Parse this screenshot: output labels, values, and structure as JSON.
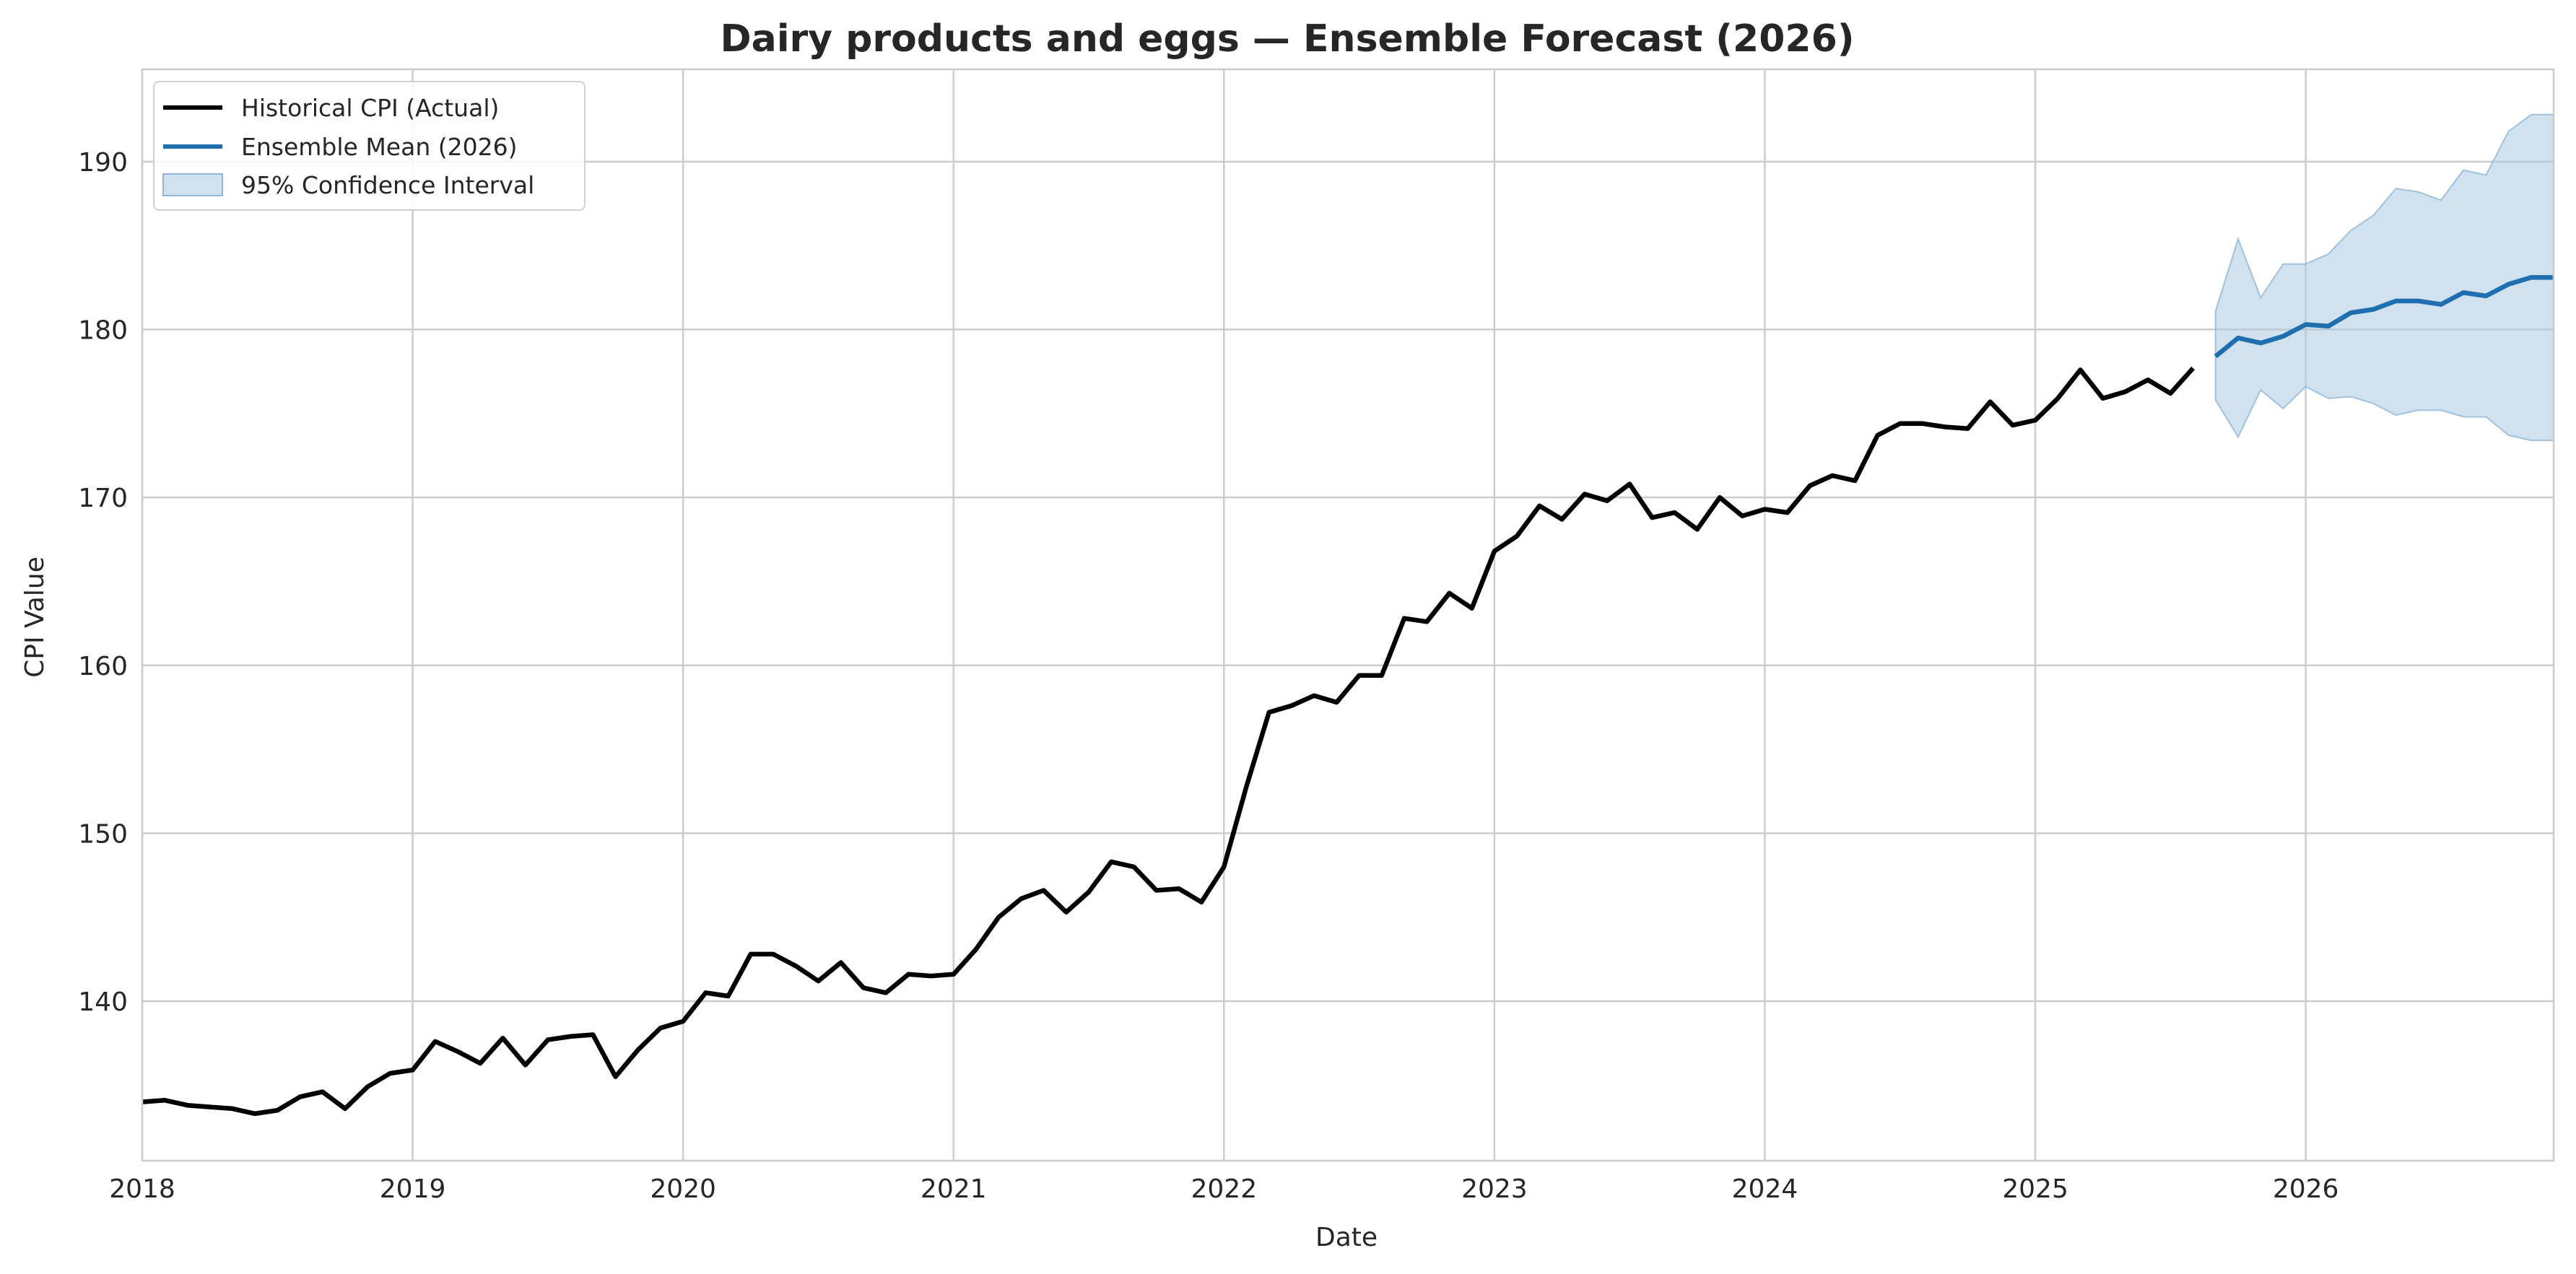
{
  "chart_data": {
    "type": "line",
    "title": "Dairy products and eggs — Ensemble Forecast (2026)",
    "xlabel": "Date",
    "ylabel": "CPI Value",
    "xlim": [
      "2018-01",
      "2026-12"
    ],
    "ylim": [
      130.5,
      195.5
    ],
    "x_ticks": [
      "2018",
      "2019",
      "2020",
      "2021",
      "2022",
      "2023",
      "2024",
      "2025",
      "2026"
    ],
    "y_ticks": [
      140,
      150,
      160,
      170,
      180,
      190
    ],
    "grid": true,
    "legend_position": "top-left",
    "legend": [
      "Historical CPI (Actual)",
      "Ensemble Mean (2026)",
      "95% Confidence Interval"
    ],
    "colors": {
      "historical": "#000000",
      "forecast": "#1f6fb0",
      "ci_fill": "#a9c9e2",
      "grid": "#cccccc",
      "axes": "#cccccc"
    },
    "series": [
      {
        "name": "Historical CPI (Actual)",
        "start": "2018-01",
        "frequency": "monthly",
        "values": [
          134.0,
          134.1,
          133.8,
          133.7,
          133.6,
          133.3,
          133.5,
          134.3,
          134.6,
          133.6,
          134.9,
          135.7,
          135.9,
          137.6,
          137.0,
          136.3,
          137.8,
          136.2,
          137.7,
          137.9,
          138.0,
          135.5,
          137.1,
          138.4,
          138.8,
          140.5,
          140.3,
          142.8,
          142.8,
          142.1,
          141.2,
          142.3,
          140.8,
          140.5,
          141.6,
          141.5,
          141.6,
          143.1,
          145.0,
          146.1,
          146.6,
          145.3,
          146.5,
          148.3,
          148.0,
          146.6,
          146.7,
          145.9,
          148.0,
          152.8,
          157.2,
          157.6,
          158.2,
          157.8,
          159.4,
          159.4,
          162.8,
          162.6,
          164.3,
          163.4,
          166.8,
          167.7,
          169.5,
          168.7,
          170.2,
          169.8,
          170.8,
          168.8,
          169.1,
          168.1,
          170.0,
          168.9,
          169.3,
          169.1,
          170.7,
          171.3,
          171.0,
          173.7,
          174.4,
          174.4,
          174.2,
          174.1,
          175.7,
          174.3,
          174.6,
          175.9,
          177.6,
          175.9,
          176.3,
          177.0,
          176.2,
          177.7
        ]
      },
      {
        "name": "Ensemble Mean (2026)",
        "start": "2025-09",
        "frequency": "monthly",
        "values": [
          178.4,
          179.5,
          179.2,
          179.6,
          180.3,
          180.2,
          181.0,
          181.2,
          181.7,
          181.7,
          181.5,
          182.2,
          182.0,
          182.7,
          183.1,
          183.1
        ],
        "ci_upper": [
          181.1,
          185.4,
          181.9,
          183.9,
          183.9,
          184.5,
          185.9,
          186.8,
          188.4,
          188.2,
          187.7,
          189.5,
          189.2,
          191.8,
          192.8,
          192.8
        ],
        "ci_lower": [
          175.8,
          173.6,
          176.4,
          175.3,
          176.6,
          175.9,
          176.0,
          175.6,
          174.9,
          175.2,
          175.2,
          174.8,
          174.8,
          173.7,
          173.4,
          173.4
        ]
      }
    ]
  }
}
